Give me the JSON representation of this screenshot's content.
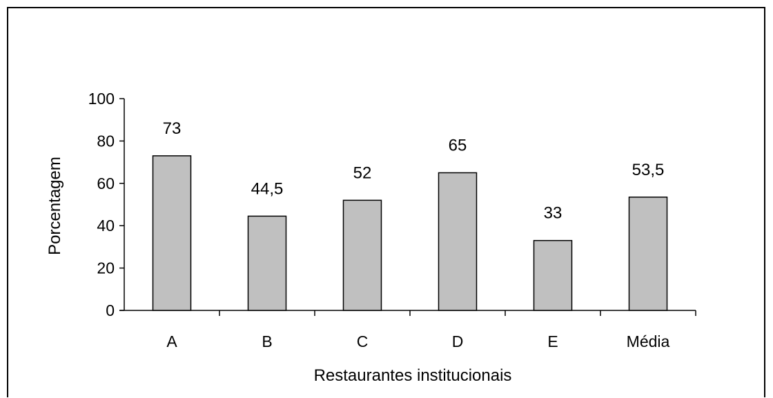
{
  "chart_data": {
    "type": "bar",
    "categories": [
      "A",
      "B",
      "C",
      "D",
      "E",
      "Média"
    ],
    "values": [
      73,
      44.5,
      52,
      65,
      33,
      53.5
    ],
    "value_labels": [
      "73",
      "44,5",
      "52",
      "65",
      "33",
      "53,5"
    ],
    "xlabel": "Restaurantes institucionais",
    "ylabel": "Porcentagem",
    "ylim": [
      0,
      100
    ],
    "yticks": [
      "0",
      "20",
      "40",
      "60",
      "80",
      "100"
    ],
    "grid": false,
    "legend": "none",
    "bar_color": "#c0c0c0",
    "bar_edge_color": "#000000"
  }
}
